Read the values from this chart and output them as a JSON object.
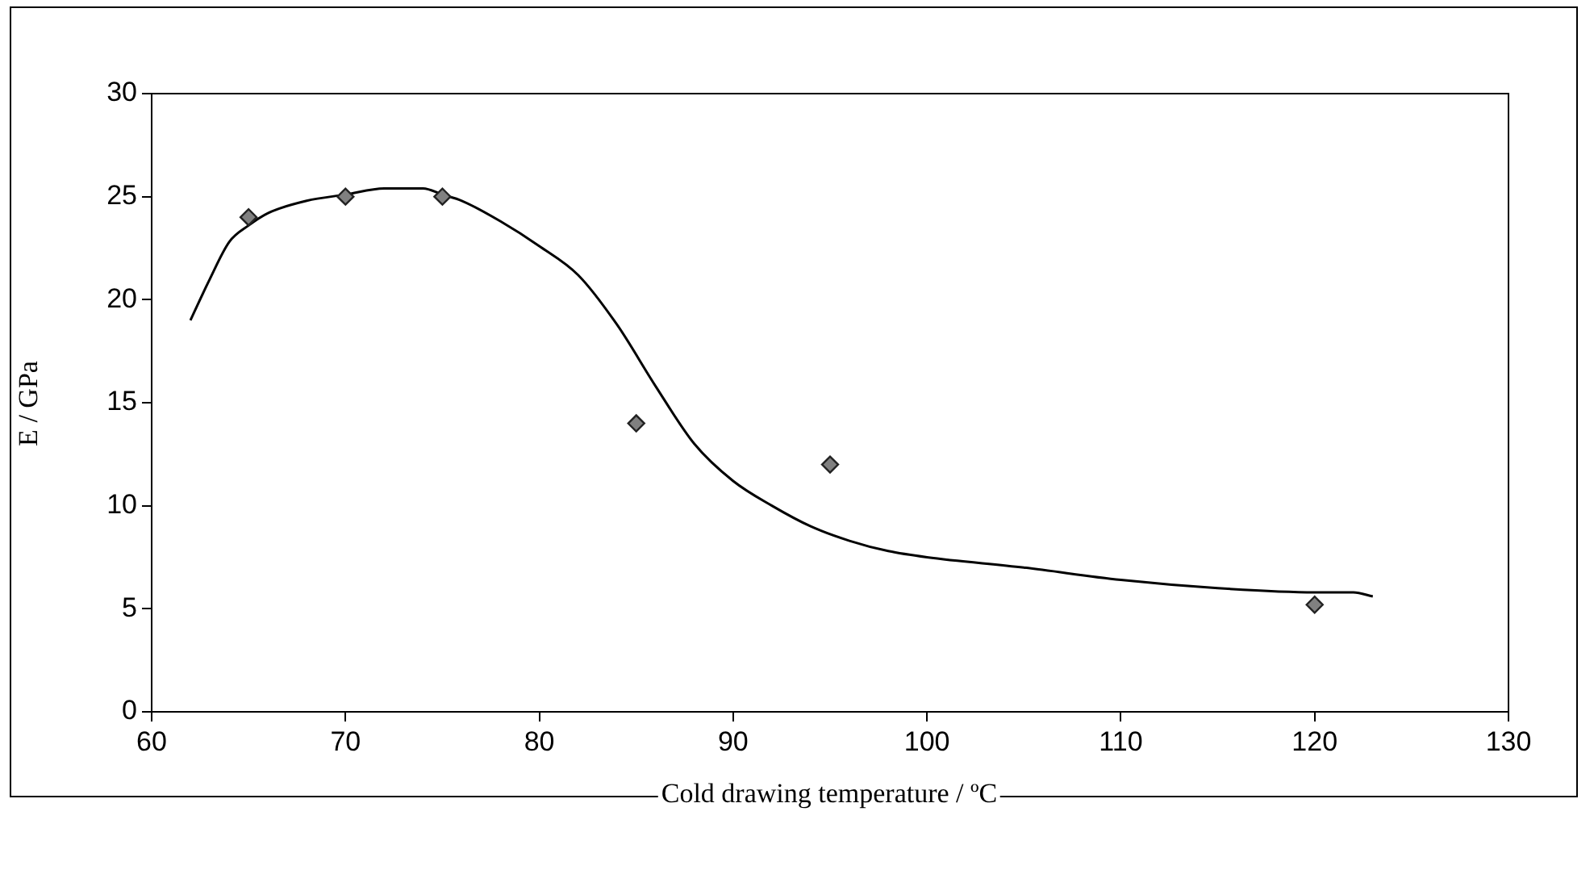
{
  "chart_data": {
    "type": "scatter",
    "xlabel": "Cold drawing temperature / ºC",
    "ylabel": "E / GPa",
    "xlim": [
      60,
      130
    ],
    "xticks": [
      60,
      70,
      80,
      90,
      100,
      110,
      120,
      130
    ],
    "ylim": [
      0,
      30
    ],
    "yticks": [
      0,
      5,
      10,
      15,
      20,
      25,
      30
    ],
    "grid": false,
    "legend": false,
    "marker": "diamond",
    "series": [
      {
        "color": "#808080",
        "x": [
          65,
          70,
          75,
          85,
          95,
          120
        ],
        "values": [
          24,
          25,
          25,
          14,
          12,
          5.2
        ]
      },
      {
        "type": "line",
        "marker": "none",
        "color": "#000000",
        "x": [
          62,
          63,
          64,
          65,
          66,
          68,
          70,
          72,
          74,
          75,
          76,
          78,
          80,
          82,
          84,
          86,
          88,
          90,
          92,
          94,
          96,
          98,
          100,
          105,
          110,
          115,
          120,
          122,
          123
        ],
        "values": [
          19,
          21,
          22.8,
          23.6,
          24.2,
          24.8,
          25.1,
          25.4,
          25.4,
          25.1,
          24.8,
          23.8,
          22.6,
          21.2,
          18.8,
          15.8,
          13,
          11.2,
          10,
          9,
          8.3,
          7.8,
          7.5,
          7,
          6.4,
          6,
          5.8,
          5.8,
          5.6
        ]
      }
    ]
  }
}
